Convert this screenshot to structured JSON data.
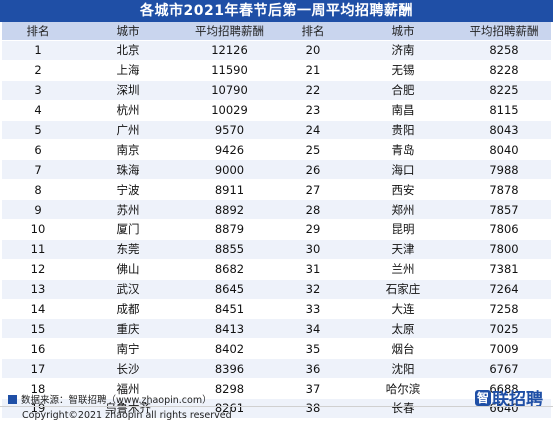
{
  "title": "各城市2021年春节后第一周平均招聘薪酬",
  "headers": [
    "排名",
    "城市",
    "平均招聘薪酬",
    "排名",
    "城市",
    "平均招聘薪酬"
  ],
  "rows": [
    {
      "r1": "1",
      "c1": "北京",
      "s1": "12126",
      "r2": "20",
      "c2": "济南",
      "s2": "8258"
    },
    {
      "r1": "2",
      "c1": "上海",
      "s1": "11590",
      "r2": "21",
      "c2": "无锡",
      "s2": "8228"
    },
    {
      "r1": "3",
      "c1": "深圳",
      "s1": "10790",
      "r2": "22",
      "c2": "合肥",
      "s2": "8225"
    },
    {
      "r1": "4",
      "c1": "杭州",
      "s1": "10029",
      "r2": "23",
      "c2": "南昌",
      "s2": "8115"
    },
    {
      "r1": "5",
      "c1": "广州",
      "s1": "9570",
      "r2": "24",
      "c2": "贵阳",
      "s2": "8043"
    },
    {
      "r1": "6",
      "c1": "南京",
      "s1": "9426",
      "r2": "25",
      "c2": "青岛",
      "s2": "8040"
    },
    {
      "r1": "7",
      "c1": "珠海",
      "s1": "9000",
      "r2": "26",
      "c2": "海口",
      "s2": "7988"
    },
    {
      "r1": "8",
      "c1": "宁波",
      "s1": "8911",
      "r2": "27",
      "c2": "西安",
      "s2": "7878"
    },
    {
      "r1": "9",
      "c1": "苏州",
      "s1": "8892",
      "r2": "28",
      "c2": "郑州",
      "s2": "7857"
    },
    {
      "r1": "10",
      "c1": "厦门",
      "s1": "8879",
      "r2": "29",
      "c2": "昆明",
      "s2": "7806"
    },
    {
      "r1": "11",
      "c1": "东莞",
      "s1": "8855",
      "r2": "30",
      "c2": "天津",
      "s2": "7800"
    },
    {
      "r1": "12",
      "c1": "佛山",
      "s1": "8682",
      "r2": "31",
      "c2": "兰州",
      "s2": "7381"
    },
    {
      "r1": "13",
      "c1": "武汉",
      "s1": "8645",
      "r2": "32",
      "c2": "石家庄",
      "s2": "7264"
    },
    {
      "r1": "14",
      "c1": "成都",
      "s1": "8451",
      "r2": "33",
      "c2": "大连",
      "s2": "7258"
    },
    {
      "r1": "15",
      "c1": "重庆",
      "s1": "8413",
      "r2": "34",
      "c2": "太原",
      "s2": "7025"
    },
    {
      "r1": "16",
      "c1": "南宁",
      "s1": "8402",
      "r2": "35",
      "c2": "烟台",
      "s2": "7009"
    },
    {
      "r1": "17",
      "c1": "长沙",
      "s1": "8396",
      "r2": "36",
      "c2": "沈阳",
      "s2": "6767"
    },
    {
      "r1": "18",
      "c1": "福州",
      "s1": "8298",
      "r2": "37",
      "c2": "哈尔滨",
      "s2": "6688"
    },
    {
      "r1": "19",
      "c1": "乌鲁木齐",
      "s1": "8261",
      "r2": "38",
      "c2": "长春",
      "s2": "6640"
    }
  ],
  "footer": {
    "source": "数据来源：智联招聘（www.zhaopin.com）",
    "copyright": "Copyright©2021 zhaopin all rights reserved"
  },
  "logo": {
    "mark": "智",
    "text": "联招聘"
  },
  "colors": {
    "brand": "#1f4fa6",
    "header_bg": "#c9d5ee",
    "stripe": "#eef2fa"
  }
}
